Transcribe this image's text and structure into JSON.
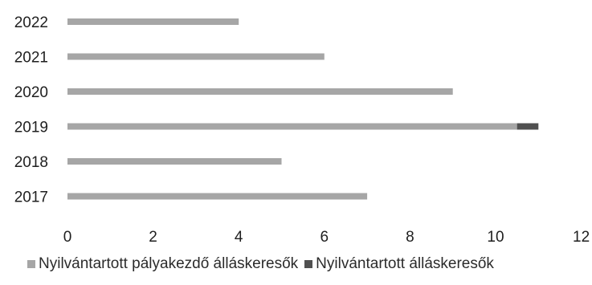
{
  "chart_data": {
    "type": "bar",
    "orientation": "horizontal",
    "stacked": true,
    "categories": [
      "2017",
      "2018",
      "2019",
      "2020",
      "2021",
      "2022"
    ],
    "series": [
      {
        "name": "Nyilvántartott pályakezdő álláskeresők",
        "color": "#a6a6a6",
        "values": [
          7,
          5,
          10.5,
          9,
          6,
          4
        ]
      },
      {
        "name": "Nyilvántartott álláskeresők",
        "color": "#505050",
        "values": [
          0,
          0,
          0.5,
          0,
          0,
          0
        ]
      }
    ],
    "xlim": [
      0,
      12
    ],
    "x_ticks": [
      "0",
      "2",
      "4",
      "6",
      "8",
      "10",
      "12"
    ],
    "grid": false,
    "legend_position": "bottom",
    "title": "",
    "xlabel": "",
    "ylabel": ""
  }
}
